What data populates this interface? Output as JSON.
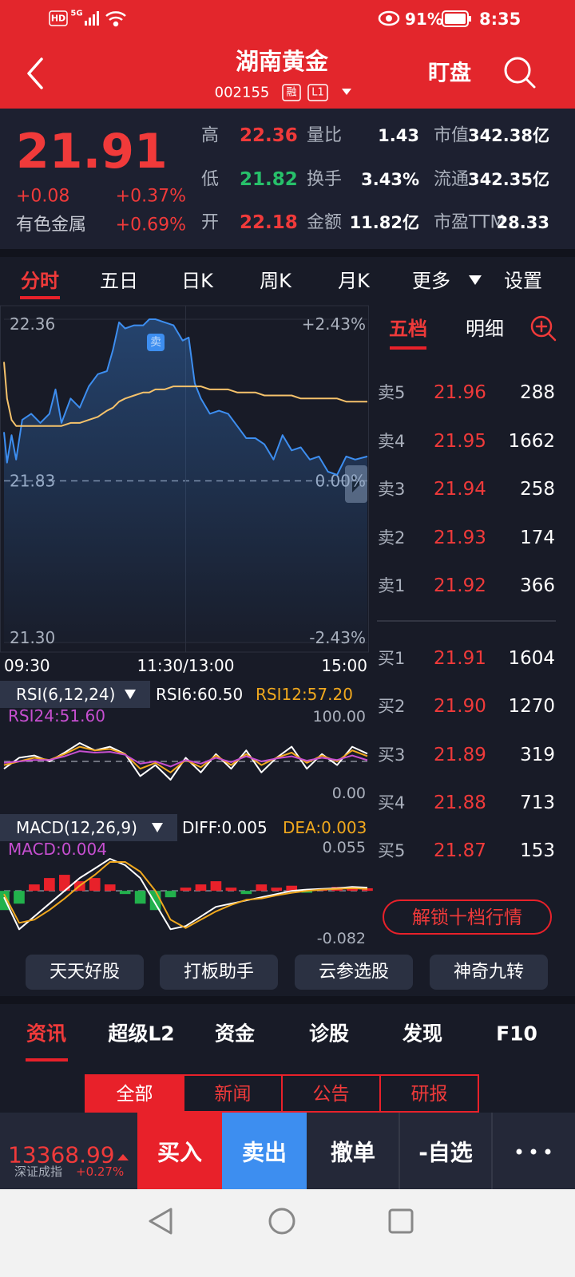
{
  "status": {
    "hd": "HD",
    "network": "5G",
    "battery": "91%",
    "time": "8:35"
  },
  "header": {
    "title": "湖南黄金",
    "code": "002155",
    "badges": [
      "融",
      "L1"
    ],
    "watch": "盯盘"
  },
  "quote": {
    "price": "21.91",
    "change": "+0.08",
    "change_pct": "+0.37%",
    "sector": "有色金属",
    "sector_pct": "+0.69%",
    "stats": [
      {
        "label": "高",
        "value": "22.36"
      },
      {
        "label": "量比",
        "value": "1.43"
      },
      {
        "label": "市值",
        "value": "342.38亿"
      },
      {
        "label": "低",
        "value": "21.82"
      },
      {
        "label": "换手",
        "value": "3.43%"
      },
      {
        "label": "流通",
        "value": "342.35亿"
      },
      {
        "label": "开",
        "value": "22.18"
      },
      {
        "label": "金额",
        "value": "11.82亿"
      },
      {
        "label": "市盈TTM",
        "value": "28.33"
      }
    ]
  },
  "chart_tabs": [
    "分时",
    "五日",
    "日K",
    "周K",
    "月K",
    "更多",
    "设置"
  ],
  "chart_data": [
    {
      "type": "line",
      "x": [
        0,
        2,
        5,
        8,
        12,
        18,
        24,
        30,
        34,
        38,
        44,
        50,
        56,
        62,
        68,
        72,
        76,
        80,
        86,
        92,
        96,
        100,
        106,
        112,
        118,
        122,
        126,
        130,
        136,
        142,
        148,
        154,
        160,
        166,
        172,
        178,
        184,
        190,
        196,
        202,
        208,
        214,
        220,
        226,
        232,
        240
      ],
      "xlim": [
        0,
        240
      ],
      "xticks": [
        {
          "value": 0,
          "label": "09:30"
        },
        {
          "value": 120,
          "label": "11:30/13:00"
        },
        {
          "value": 240,
          "label": "15:00"
        }
      ],
      "ylim": [
        21.3,
        22.36
      ],
      "yticks": [
        {
          "value": 21.3,
          "label": "21.30"
        },
        21.83,
        22.36
      ],
      "y2lim": [
        -2.43,
        2.43
      ],
      "y2ticks": [
        {
          "value": -2.43,
          "label": "-2.43%"
        },
        {
          "value": 0,
          "label": "0.00%"
        },
        {
          "value": 2.43,
          "label": "+2.43%"
        }
      ],
      "grid": true,
      "annotation": "卖",
      "series": [
        {
          "color": "#3d8ef0",
          "area": true,
          "values": [
            21.99,
            21.89,
            21.98,
            21.9,
            22.03,
            22.05,
            22.02,
            22.05,
            22.13,
            22.02,
            22.1,
            22.07,
            22.14,
            22.18,
            22.19,
            22.26,
            22.35,
            22.33,
            22.34,
            22.34,
            22.36,
            22.36,
            22.35,
            22.34,
            22.29,
            22.3,
            22.15,
            22.1,
            22.05,
            22.06,
            22.05,
            22.01,
            21.97,
            21.97,
            21.95,
            21.9,
            21.98,
            21.93,
            21.94,
            21.9,
            21.91,
            21.86,
            21.85,
            21.91,
            21.9,
            21.91
          ]
        },
        {
          "color": "#f5c26b",
          "values": [
            22.22,
            22.1,
            22.03,
            22.01,
            22.01,
            22.01,
            22.01,
            22.01,
            22.01,
            22.01,
            22.02,
            22.02,
            22.03,
            22.04,
            22.06,
            22.07,
            22.09,
            22.1,
            22.11,
            22.12,
            22.12,
            22.13,
            22.13,
            22.14,
            22.14,
            22.14,
            22.14,
            22.14,
            22.13,
            22.13,
            22.13,
            22.12,
            22.12,
            22.12,
            22.11,
            22.11,
            22.11,
            22.11,
            22.1,
            22.1,
            22.1,
            22.1,
            22.1,
            22.09,
            22.09,
            22.09
          ]
        }
      ]
    },
    {
      "type": "line",
      "title": "RSI(6,12,24)",
      "x": [
        0,
        10,
        20,
        30,
        40,
        50,
        60,
        70,
        80,
        90,
        100,
        110,
        120,
        130,
        140,
        150,
        160,
        170,
        180,
        190,
        200,
        210,
        220,
        230,
        240
      ],
      "xlim": [
        0,
        240
      ],
      "ylim": [
        0,
        100
      ],
      "yticks": [
        {
          "value": 0,
          "label": "0.00"
        },
        {
          "value": 100,
          "label": "100.00"
        }
      ],
      "series": [
        {
          "name": "RSI6:60.50",
          "color": "#ffffff",
          "values": [
            40,
            55,
            58,
            50,
            62,
            75,
            65,
            70,
            60,
            30,
            45,
            25,
            55,
            35,
            60,
            40,
            65,
            35,
            55,
            70,
            40,
            60,
            45,
            70,
            60.5
          ]
        },
        {
          "name": "RSI12:57.20",
          "color": "#f0a81e",
          "values": [
            45,
            50,
            55,
            52,
            60,
            70,
            65,
            67,
            60,
            40,
            48,
            35,
            52,
            42,
            58,
            45,
            60,
            45,
            55,
            62,
            48,
            58,
            50,
            65,
            57.2
          ]
        },
        {
          "name": "RSI24:51.60",
          "color": "#c64fd0",
          "values": [
            48,
            50,
            52,
            52,
            57,
            64,
            62,
            63,
            59,
            47,
            50,
            43,
            52,
            47,
            55,
            49,
            57,
            50,
            54,
            57,
            51,
            55,
            52,
            58,
            51.6
          ]
        }
      ]
    },
    {
      "type": "macd",
      "title": "MACD(12,26,9)",
      "x": [
        0,
        10,
        20,
        30,
        40,
        50,
        60,
        70,
        80,
        90,
        100,
        110,
        120,
        130,
        140,
        150,
        160,
        170,
        180,
        190,
        200,
        210,
        220,
        230,
        240
      ],
      "xlim": [
        0,
        240
      ],
      "ylim": [
        -0.082,
        0.055
      ],
      "yticks": [
        {
          "value": -0.082,
          "label": "-0.082"
        },
        0.055
      ],
      "up_color": "#e8212a",
      "down_color": "#22b14c",
      "series": [
        {
          "name": "DIFF:0.005",
          "color": "#ffffff",
          "values": [
            -0.01,
            -0.06,
            -0.04,
            -0.02,
            0.0,
            0.02,
            0.035,
            0.05,
            0.04,
            0.02,
            -0.02,
            -0.06,
            -0.055,
            -0.04,
            -0.025,
            -0.02,
            -0.015,
            -0.01,
            -0.005,
            0.0,
            0.002,
            0.003,
            0.004,
            0.006,
            0.005
          ]
        },
        {
          "name": "DEA:0.003",
          "color": "#f0a81e",
          "values": [
            -0.005,
            -0.05,
            -0.045,
            -0.03,
            -0.012,
            0.008,
            0.025,
            0.045,
            0.045,
            0.03,
            0.0,
            -0.045,
            -0.058,
            -0.045,
            -0.032,
            -0.022,
            -0.014,
            -0.012,
            -0.007,
            -0.003,
            0.0,
            0.002,
            0.003,
            0.004,
            0.003
          ]
        },
        {
          "name": "MACD:0.004",
          "color": "#c64fd0",
          "style": "bar",
          "values": [
            -0.03,
            -0.02,
            0.01,
            0.02,
            0.025,
            0.015,
            0.02,
            0.01,
            -0.005,
            -0.02,
            -0.03,
            -0.01,
            0.005,
            0.01,
            0.015,
            0.005,
            -0.005,
            0.01,
            0.005,
            0.008,
            -0.003,
            0.004,
            0.006,
            0.005,
            0.004
          ]
        }
      ]
    }
  ],
  "order_book": {
    "tabs": [
      "五档",
      "明细"
    ],
    "asks": [
      {
        "label": "卖5",
        "price": "21.96",
        "volume": "288"
      },
      {
        "label": "卖4",
        "price": "21.95",
        "volume": "1662"
      },
      {
        "label": "卖3",
        "price": "21.94",
        "volume": "258"
      },
      {
        "label": "卖2",
        "price": "21.93",
        "volume": "174"
      },
      {
        "label": "卖1",
        "price": "21.92",
        "volume": "366"
      }
    ],
    "bids": [
      {
        "label": "买1",
        "price": "21.91",
        "volume": "1604"
      },
      {
        "label": "买2",
        "price": "21.90",
        "volume": "1270"
      },
      {
        "label": "买3",
        "price": "21.89",
        "volume": "319"
      },
      {
        "label": "买4",
        "price": "21.88",
        "volume": "713"
      },
      {
        "label": "买5",
        "price": "21.87",
        "volume": "153"
      }
    ],
    "unlock": "解锁十档行情"
  },
  "tools": [
    "天天好股",
    "打板助手",
    "云参选股",
    "神奇九转"
  ],
  "info_tabs": [
    "资讯",
    "超级L2",
    "资金",
    "诊股",
    "发现",
    "F10"
  ],
  "info_subtabs": [
    "全部",
    "新闻",
    "公告",
    "研报"
  ],
  "bottom_bar": {
    "index_value": "13368.99",
    "index_name": "深证成指",
    "index_change": "+0.27%",
    "actions": [
      "买入",
      "卖出",
      "撤单",
      "-自选"
    ]
  }
}
